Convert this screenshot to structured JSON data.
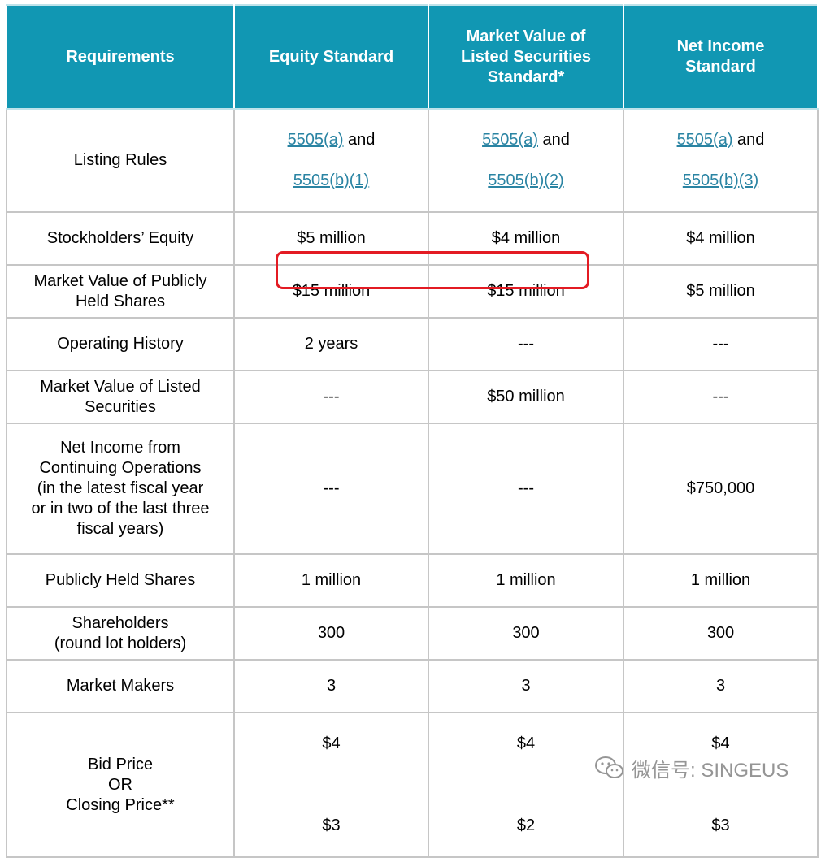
{
  "table": {
    "headers": [
      "Requirements",
      "Equity Standard",
      "Market Value of\nListed Securities\nStandard*",
      "Net Income\nStandard"
    ],
    "listing_rules": {
      "label": "Listing Rules",
      "equity": {
        "link1": "5505(a)",
        "joiner": " and",
        "link2": "5505(b)(1)"
      },
      "mvls": {
        "link1": "5505(a)",
        "joiner": " and",
        "link2": "5505(b)(2)"
      },
      "net_income": {
        "link1": "5505(a)",
        "joiner": " and",
        "link2": "5505(b)(3)"
      }
    },
    "rows": [
      {
        "label": "Stockholders’ Equity",
        "equity": "$5 million",
        "mvls": "$4 million",
        "net_income": "$4 million"
      },
      {
        "label": "Market Value of Publicly\nHeld Shares",
        "equity": "$15 million",
        "mvls": "$15 million",
        "net_income": "$5 million"
      },
      {
        "label": "Operating History",
        "equity": "2 years",
        "mvls": "---",
        "net_income": "---"
      },
      {
        "label": "Market Value of Listed\nSecurities",
        "equity": "---",
        "mvls": "$50 million",
        "net_income": "---"
      },
      {
        "label": "Net Income from\nContinuing Operations\n(in the latest fiscal year\nor in two of the last three\nfiscal years)",
        "equity": "---",
        "mvls": "---",
        "net_income": "$750,000"
      },
      {
        "label": "Publicly Held Shares",
        "equity": "1 million",
        "mvls": "1 million",
        "net_income": "1 million"
      },
      {
        "label": "Shareholders\n(round lot holders)",
        "equity": "300",
        "mvls": "300",
        "net_income": "300"
      },
      {
        "label": "Market Makers",
        "equity": "3",
        "mvls": "3",
        "net_income": "3"
      }
    ],
    "price_row": {
      "label": "Bid Price\nOR\nClosing Price**",
      "equity": {
        "bid": "$4",
        "closing": "$3"
      },
      "mvls": {
        "bid": "$4",
        "closing": "$2"
      },
      "net_income": {
        "bid": "$4",
        "closing": "$3"
      }
    }
  },
  "watermark": {
    "text": "微信号: SINGEUS",
    "icon": "wechat-icon",
    "color": "#8a8a8a"
  },
  "colors": {
    "header_bg": "#1197b3",
    "link": "#2a84a3",
    "highlight": "#e31b23",
    "grid": "#c6c6c6"
  }
}
